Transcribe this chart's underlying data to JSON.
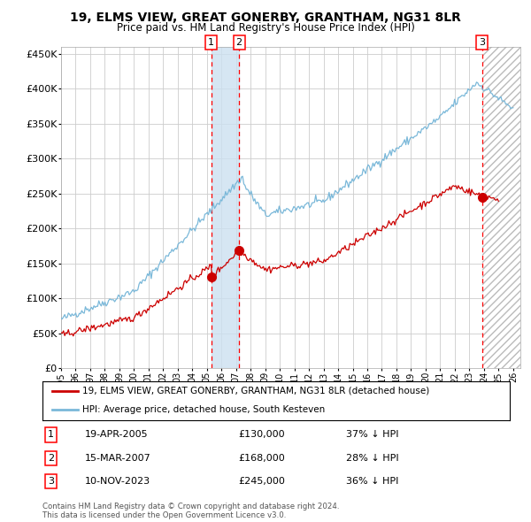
{
  "title": "19, ELMS VIEW, GREAT GONERBY, GRANTHAM, NG31 8LR",
  "subtitle": "Price paid vs. HM Land Registry's House Price Index (HPI)",
  "hpi_color": "#7ab8d9",
  "price_color": "#cc0000",
  "marker_color": "#cc0000",
  "bg_color": "#ffffff",
  "grid_color": "#cccccc",
  "transactions": [
    {
      "num": 1,
      "date": "19-APR-2005",
      "date_x": 2005.3,
      "price": 130000,
      "label": "37% ↓ HPI"
    },
    {
      "num": 2,
      "date": "15-MAR-2007",
      "date_x": 2007.21,
      "price": 168000,
      "label": "28% ↓ HPI"
    },
    {
      "num": 3,
      "date": "10-NOV-2023",
      "date_x": 2023.86,
      "price": 245000,
      "label": "36% ↓ HPI"
    }
  ],
  "ylim": [
    0,
    460000
  ],
  "xlim": [
    1995.0,
    2026.5
  ],
  "yticks": [
    0,
    50000,
    100000,
    150000,
    200000,
    250000,
    300000,
    350000,
    400000,
    450000
  ],
  "ytick_labels": [
    "£0",
    "£50K",
    "£100K",
    "£150K",
    "£200K",
    "£250K",
    "£300K",
    "£350K",
    "£400K",
    "£450K"
  ],
  "xtick_years": [
    1995,
    1996,
    1997,
    1998,
    1999,
    2000,
    2001,
    2002,
    2003,
    2004,
    2005,
    2006,
    2007,
    2008,
    2009,
    2010,
    2011,
    2012,
    2013,
    2014,
    2015,
    2016,
    2017,
    2018,
    2019,
    2020,
    2021,
    2022,
    2023,
    2024,
    2025,
    2026
  ],
  "legend_entries": [
    "19, ELMS VIEW, GREAT GONERBY, GRANTHAM, NG31 8LR (detached house)",
    "HPI: Average price, detached house, South Kesteven"
  ],
  "footer": "Contains HM Land Registry data © Crown copyright and database right 2024.\nThis data is licensed under the Open Government Licence v3.0.",
  "shading_color": "#cce0f0"
}
